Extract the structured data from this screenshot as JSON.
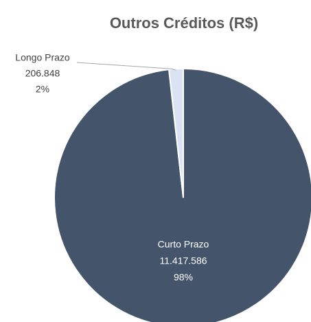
{
  "chart_data": {
    "type": "pie",
    "title": "Outros Créditos (R$)",
    "categories": [
      "Curto Prazo",
      "Longo Prazo"
    ],
    "values": [
      11417586,
      206848
    ],
    "value_labels": [
      "11.417.586",
      "206.848"
    ],
    "percent_labels": [
      "98%",
      "2%"
    ],
    "colors": [
      "#44546a",
      "#dae3f3"
    ]
  }
}
